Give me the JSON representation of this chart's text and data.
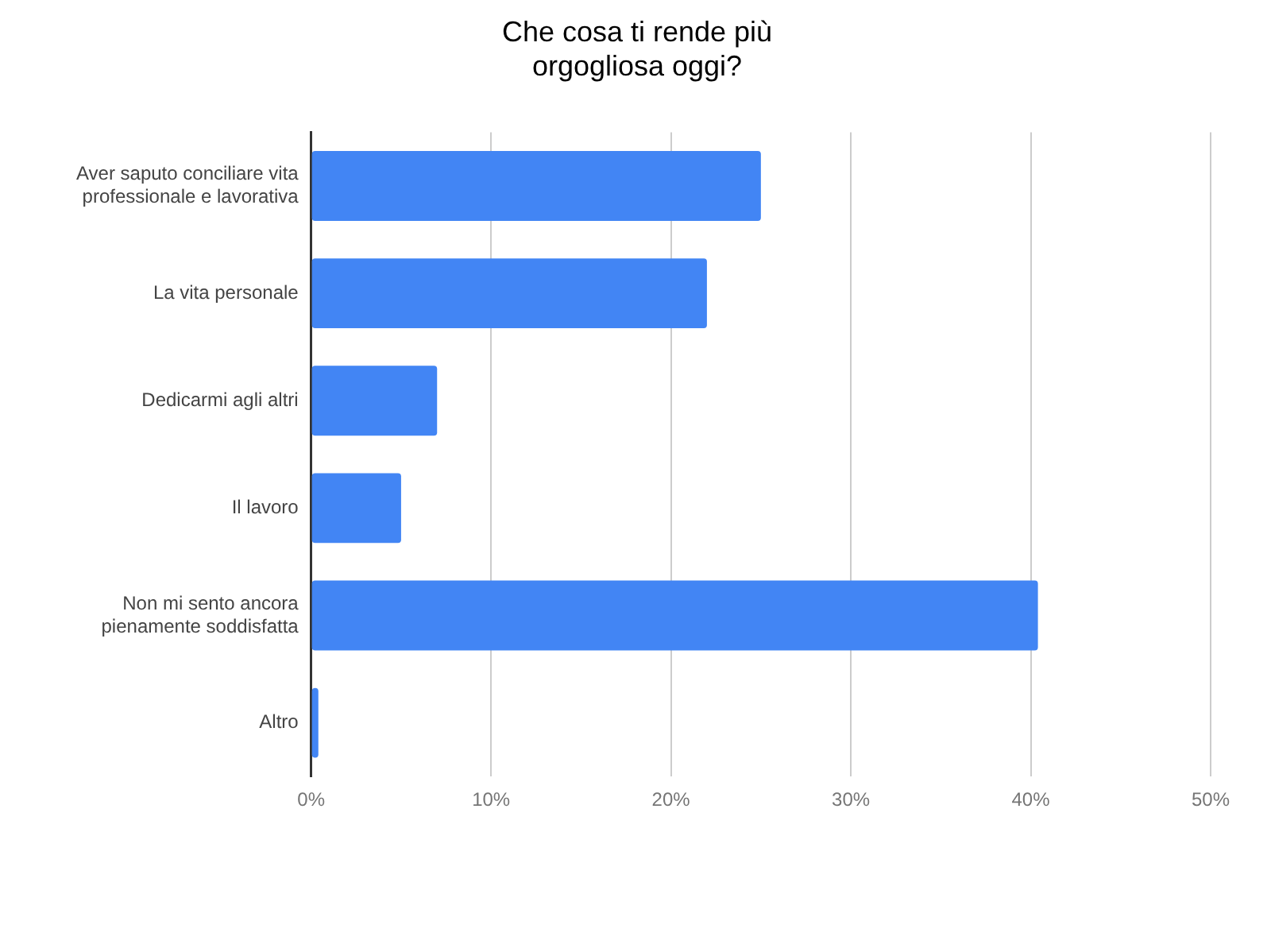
{
  "chart_data": {
    "type": "bar",
    "orientation": "horizontal",
    "title": "Che cosa ti rende più orgogliosa oggi?",
    "categories": [
      "Aver saputo conciliare vita professionale e lavorativa",
      "La vita personale",
      "Dedicarmi agli altri",
      "Il lavoro",
      "Non mi sento ancora pienamente soddisfatta",
      "Altro"
    ],
    "values": [
      25,
      22,
      7,
      5,
      40.4,
      0.4
    ],
    "color": "#4285f4",
    "xlim": [
      0,
      50
    ],
    "xticks": [
      {
        "value": 0,
        "label": "0%"
      },
      {
        "value": 10,
        "label": "10%"
      },
      {
        "value": 20,
        "label": "20%"
      },
      {
        "value": 30,
        "label": "30%"
      },
      {
        "value": 40,
        "label": "40%"
      },
      {
        "value": 50,
        "label": "50%"
      }
    ],
    "grid": "x",
    "legend": false
  }
}
